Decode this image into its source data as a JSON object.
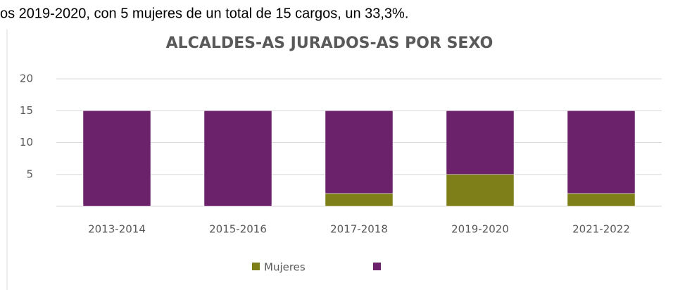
{
  "text": "os 2019-2020, con 5 mujeres de un total de 15 cargos, un 33,3%.",
  "chart_data": {
    "type": "stacked_bar",
    "title": "ALCALDES-AS JURADOS-AS POR SEXO",
    "categories": [
      "2013-2014",
      "2015-2016",
      "2017-2018",
      "2019-2020",
      "2021-2022"
    ],
    "series": [
      {
        "name": "Mujeres",
        "color": "#7f7f19",
        "values": [
          0,
          0,
          2,
          5,
          2
        ]
      },
      {
        "color": "#6b226a",
        "values": [
          15,
          15,
          13,
          10,
          13
        ]
      }
    ],
    "ylim": [
      0,
      20
    ],
    "yticks": [
      5,
      10,
      15,
      20
    ],
    "grid": true,
    "legend": "bottom"
  }
}
